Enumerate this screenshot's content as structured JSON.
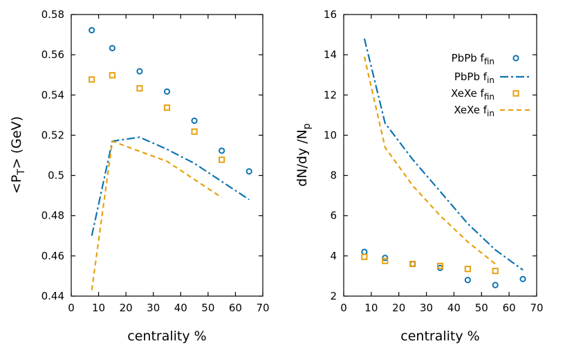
{
  "colors": {
    "pbpb": "#0d73b1",
    "xexe": "#e6a00f"
  },
  "chart_data": [
    {
      "type": "line",
      "xlabel": "centrality %",
      "ylabel_main": "<P",
      "ylabel_sub": "T",
      "ylabel_tail": "> (GeV)",
      "xlim": [
        0,
        70
      ],
      "ylim": [
        0.44,
        0.58
      ],
      "xticks": [
        0,
        10,
        20,
        30,
        40,
        50,
        60,
        70
      ],
      "yticks": [
        0.44,
        0.46,
        0.48,
        0.5,
        0.52,
        0.54,
        0.56,
        0.58
      ],
      "xtick_labels": [
        "0",
        "10",
        "20",
        "30",
        "40",
        "50",
        "60",
        "70"
      ],
      "ytick_labels": [
        "0.44",
        "0.46",
        "0.48",
        "0.5",
        "0.52",
        "0.54",
        "0.56",
        "0.58"
      ],
      "series": [
        {
          "name": "PbPb f_fin",
          "style": "circle",
          "color": "pbpb",
          "x": [
            7.5,
            15,
            25,
            35,
            45,
            55,
            65
          ],
          "y": [
            0.5722,
            0.5633,
            0.5518,
            0.5417,
            0.5272,
            0.5123,
            0.502
          ]
        },
        {
          "name": "PbPb f_in",
          "style": "dashdot",
          "color": "pbpb",
          "x": [
            7.5,
            15,
            25,
            35,
            45,
            55,
            65
          ],
          "y": [
            0.47,
            0.517,
            0.519,
            0.513,
            0.506,
            0.497,
            0.488
          ]
        },
        {
          "name": "XeXe f_fin",
          "style": "square",
          "color": "xexe",
          "x": [
            7.5,
            15,
            25,
            35,
            45,
            55
          ],
          "y": [
            0.5477,
            0.5498,
            0.5433,
            0.5337,
            0.5218,
            0.5078
          ]
        },
        {
          "name": "XeXe f_in",
          "style": "dashed",
          "color": "xexe",
          "x": [
            7.5,
            15,
            25,
            35,
            45,
            55
          ],
          "y": [
            0.443,
            0.517,
            0.512,
            0.507,
            0.498,
            0.489
          ]
        }
      ]
    },
    {
      "type": "line",
      "xlabel": "centrality %",
      "ylabel_main": "dN/dy /N",
      "ylabel_sub": "p",
      "ylabel_tail": "",
      "xlim": [
        0,
        70
      ],
      "ylim": [
        2,
        16
      ],
      "xticks": [
        0,
        10,
        20,
        30,
        40,
        50,
        60,
        70
      ],
      "yticks": [
        2,
        4,
        6,
        8,
        10,
        12,
        14,
        16
      ],
      "xtick_labels": [
        "0",
        "10",
        "20",
        "30",
        "40",
        "50",
        "60",
        "70"
      ],
      "ytick_labels": [
        "2",
        "4",
        "6",
        "8",
        "10",
        "12",
        "14",
        "16"
      ],
      "legend": {
        "position": "top-right",
        "entries": [
          {
            "main": "PbPb f",
            "sub": "fin",
            "style": "circle",
            "color": "pbpb"
          },
          {
            "main": "PbPb f",
            "sub": "in",
            "style": "dashdot",
            "color": "pbpb"
          },
          {
            "main": "XeXe f",
            "sub": "fin",
            "style": "square",
            "color": "xexe"
          },
          {
            "main": "XeXe f",
            "sub": "in",
            "style": "dashed",
            "color": "xexe"
          }
        ]
      },
      "series": [
        {
          "name": "PbPb f_fin",
          "style": "circle",
          "color": "pbpb",
          "x": [
            7.5,
            15,
            25,
            35,
            45,
            55,
            65
          ],
          "y": [
            4.2,
            3.9,
            3.6,
            3.4,
            2.8,
            2.55,
            2.85
          ]
        },
        {
          "name": "PbPb f_in",
          "style": "dashdot",
          "color": "pbpb",
          "x": [
            7.5,
            15,
            25,
            35,
            45,
            55,
            65
          ],
          "y": [
            14.8,
            10.6,
            8.8,
            7.2,
            5.6,
            4.3,
            3.3
          ]
        },
        {
          "name": "XeXe f_fin",
          "style": "square",
          "color": "xexe",
          "x": [
            7.5,
            15,
            25,
            35,
            45,
            55
          ],
          "y": [
            3.95,
            3.75,
            3.6,
            3.5,
            3.35,
            3.25
          ]
        },
        {
          "name": "XeXe f_in",
          "style": "dashed",
          "color": "xexe",
          "x": [
            7.5,
            15,
            25,
            35,
            45,
            55
          ],
          "y": [
            13.9,
            9.4,
            7.5,
            6.0,
            4.7,
            3.6
          ]
        }
      ]
    }
  ]
}
